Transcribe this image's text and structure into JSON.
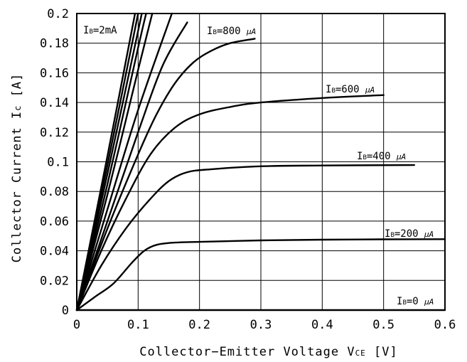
{
  "chart_data": {
    "type": "line",
    "xlabel": {
      "main": "Collector−Emitter Voltage V",
      "sub": "CE",
      "unit": " [V]"
    },
    "ylabel": {
      "main": "Collector Current I",
      "sub": "c",
      "unit": " [A]"
    },
    "xlim": [
      0,
      0.6
    ],
    "ylim": [
      0,
      0.2
    ],
    "grid": true,
    "xticks": [
      "0",
      "0.1",
      "0.2",
      "0.3",
      "0.4",
      "0.5",
      "0.6"
    ],
    "yticks": [
      "0",
      "0.02",
      "0.04",
      "0.06",
      "0.08",
      "0.1",
      "0.12",
      "0.14",
      "0.16",
      "0.18",
      "0.2"
    ],
    "colors": {
      "line": "#000000",
      "grid": "#000000",
      "background": "#ffffff"
    },
    "series": [
      {
        "label": {
          "pre": "I",
          "sub": "B",
          "post": "=0 ",
          "unit": "μA"
        },
        "x": [
          0,
          0.6
        ],
        "y": [
          0,
          0
        ]
      },
      {
        "label": {
          "pre": "I",
          "sub": "B",
          "post": "=200 ",
          "unit": "μA"
        },
        "x": [
          0,
          0.03,
          0.06,
          0.09,
          0.11,
          0.13,
          0.16,
          0.2,
          0.3,
          0.4,
          0.5,
          0.6
        ],
        "y": [
          0,
          0.009,
          0.018,
          0.032,
          0.04,
          0.044,
          0.0455,
          0.046,
          0.047,
          0.0475,
          0.0477,
          0.0478
        ]
      },
      {
        "label": {
          "pre": "I",
          "sub": "B",
          "post": "=400 ",
          "unit": "μA"
        },
        "x": [
          0,
          0.04,
          0.08,
          0.12,
          0.15,
          0.18,
          0.22,
          0.3,
          0.4,
          0.55
        ],
        "y": [
          0,
          0.03,
          0.055,
          0.075,
          0.087,
          0.093,
          0.095,
          0.097,
          0.0975,
          0.0978
        ]
      },
      {
        "label": {
          "pre": "I",
          "sub": "B",
          "post": "=600 ",
          "unit": "μA"
        },
        "x": [
          0,
          0.04,
          0.08,
          0.12,
          0.16,
          0.2,
          0.25,
          0.3,
          0.4,
          0.5
        ],
        "y": [
          0,
          0.04,
          0.075,
          0.105,
          0.123,
          0.132,
          0.137,
          0.14,
          0.143,
          0.145
        ]
      },
      {
        "label": {
          "pre": "I",
          "sub": "B",
          "post": "=800 ",
          "unit": "μA"
        },
        "x": [
          0,
          0.05,
          0.1,
          0.13,
          0.16,
          0.19,
          0.22,
          0.25,
          0.29
        ],
        "y": [
          0,
          0.055,
          0.105,
          0.132,
          0.153,
          0.167,
          0.175,
          0.18,
          0.183
        ]
      },
      {
        "label": null,
        "x": [
          0,
          0.05,
          0.1,
          0.14,
          0.18
        ],
        "y": [
          0,
          0.06,
          0.12,
          0.165,
          0.194
        ]
      },
      {
        "label": null,
        "x": [
          0,
          0.05,
          0.1,
          0.155
        ],
        "y": [
          0,
          0.068,
          0.135,
          0.2
        ]
      },
      {
        "label": null,
        "x": [
          0,
          0.05,
          0.1,
          0.123
        ],
        "y": [
          0,
          0.078,
          0.162,
          0.2
        ]
      },
      {
        "label": null,
        "x": [
          0,
          0.05,
          0.1,
          0.113
        ],
        "y": [
          0,
          0.085,
          0.177,
          0.2
        ]
      },
      {
        "label": null,
        "x": [
          0,
          0.05,
          0.106
        ],
        "y": [
          0,
          0.092,
          0.2
        ]
      },
      {
        "label": null,
        "x": [
          0,
          0.05,
          0.1
        ],
        "y": [
          0,
          0.098,
          0.2
        ]
      },
      {
        "label": {
          "pre": "I",
          "sub": "B",
          "post": "=2mA",
          "unit": ""
        },
        "x": [
          0,
          0.05,
          0.095
        ],
        "y": [
          0,
          0.104,
          0.2
        ]
      }
    ]
  }
}
